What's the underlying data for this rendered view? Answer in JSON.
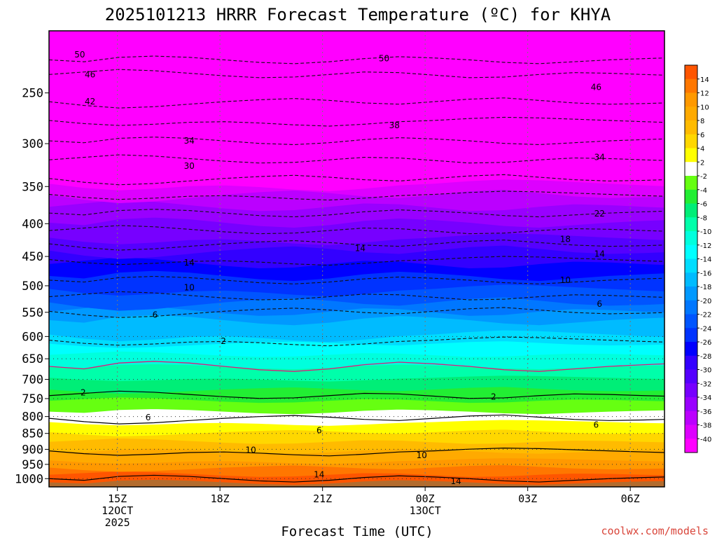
{
  "chart_data": {
    "type": "heatmap",
    "title": "2025101213 HRRR Forecast Temperature (ºC) for KHYA",
    "xlabel": "Forecast Time (UTC)",
    "ylabel": "",
    "credit": "coolwx.com/models",
    "x_ticks": [
      {
        "hour": 15,
        "lines": [
          "15Z",
          "12OCT",
          "2025"
        ]
      },
      {
        "hour": 18,
        "lines": [
          "18Z"
        ]
      },
      {
        "hour": 21,
        "lines": [
          "21Z"
        ]
      },
      {
        "hour": 24,
        "lines": [
          "00Z",
          "13OCT"
        ]
      },
      {
        "hour": 27,
        "lines": [
          "03Z"
        ]
      },
      {
        "hour": 30,
        "lines": [
          "06Z"
        ]
      }
    ],
    "x_range_hours": [
      13,
      31
    ],
    "y_axis": "pressure (hPa), log scale, inverted",
    "y_ticks": [
      250,
      300,
      350,
      400,
      450,
      500,
      550,
      600,
      650,
      700,
      750,
      800,
      850,
      900,
      950,
      1000
    ],
    "y_range": [
      200,
      1030
    ],
    "grid": true,
    "colorbar_labels": [
      14,
      12,
      10,
      8,
      6,
      4,
      2,
      -2,
      -4,
      -6,
      -8,
      -10,
      -12,
      -14,
      -16,
      -18,
      -20,
      -22,
      -24,
      -26,
      -28,
      -30,
      -32,
      -34,
      -36,
      -38,
      -40
    ],
    "colorbar_colors": [
      "#ff5500",
      "#ff7700",
      "#ff9900",
      "#ffaa00",
      "#ffbb00",
      "#ffd700",
      "#ffff00",
      "#ffffff",
      "#66ff11",
      "#22ee33",
      "#00ee77",
      "#00ffaa",
      "#00ffdd",
      "#00ffff",
      "#00ddff",
      "#00bbff",
      "#0099ff",
      "#0077ff",
      "#0055ff",
      "#0033ff",
      "#0000ff",
      "#3300ff",
      "#5500ff",
      "#7700ff",
      "#9900ff",
      "#bb00ff",
      "#dd00ff",
      "#ff00ff"
    ],
    "contour_labels": [
      {
        "text": "50",
        "hour": 13.9,
        "p": 218
      },
      {
        "text": "50",
        "hour": 22.8,
        "p": 221
      },
      {
        "text": "46",
        "hour": 14.2,
        "p": 234
      },
      {
        "text": "46",
        "hour": 29.0,
        "p": 245
      },
      {
        "text": "42",
        "hour": 14.2,
        "p": 258
      },
      {
        "text": "38",
        "hour": 23.1,
        "p": 281
      },
      {
        "text": "34",
        "hour": 17.1,
        "p": 297
      },
      {
        "text": "34",
        "hour": 29.1,
        "p": 315
      },
      {
        "text": "30",
        "hour": 17.1,
        "p": 325
      },
      {
        "text": "22",
        "hour": 29.1,
        "p": 386
      },
      {
        "text": "18",
        "hour": 28.1,
        "p": 423
      },
      {
        "text": "14",
        "hour": 22.1,
        "p": 437
      },
      {
        "text": "14",
        "hour": 29.1,
        "p": 446
      },
      {
        "text": "14",
        "hour": 17.1,
        "p": 460
      },
      {
        "text": "10",
        "hour": 28.1,
        "p": 490
      },
      {
        "text": "10",
        "hour": 17.1,
        "p": 503
      },
      {
        "text": "6",
        "hour": 29.1,
        "p": 534
      },
      {
        "text": "6",
        "hour": 16.1,
        "p": 555
      },
      {
        "text": "2",
        "hour": 18.1,
        "p": 610
      },
      {
        "text": "2",
        "hour": 14.0,
        "p": 734
      },
      {
        "text": "2",
        "hour": 26.0,
        "p": 745
      },
      {
        "text": "6",
        "hour": 15.9,
        "p": 803
      },
      {
        "text": "6",
        "hour": 29.0,
        "p": 824
      },
      {
        "text": "6",
        "hour": 20.9,
        "p": 841
      },
      {
        "text": "10",
        "hour": 18.9,
        "p": 902
      },
      {
        "text": "10",
        "hour": 23.9,
        "p": 920
      },
      {
        "text": "14",
        "hour": 20.9,
        "p": 985
      },
      {
        "text": "14",
        "hour": 24.9,
        "p": 1010
      }
    ]
  }
}
